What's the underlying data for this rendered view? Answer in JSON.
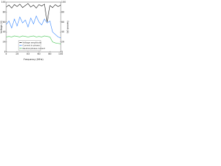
{
  "chart_data": {
    "type": "line",
    "xlabel": "Frequency (MHz)",
    "ylabel": "Voltage (V)",
    "y2label": "Current (A)",
    "x": [
      0,
      5,
      10,
      15,
      20,
      25,
      30,
      35,
      40,
      45,
      50,
      55,
      60,
      65,
      70,
      75,
      80,
      85,
      90,
      95,
      100
    ],
    "series": [
      {
        "name": "Voltage amplitude",
        "color": "#111111",
        "axis": "y",
        "values": [
          90,
          94,
          88,
          95,
          91,
          96,
          89,
          93,
          97,
          90,
          94,
          88,
          95,
          92,
          96,
          60,
          93,
          89,
          95,
          91,
          94
        ]
      },
      {
        "name": "Current in phase",
        "color": "#2a7fff",
        "axis": "y2",
        "values": [
          55,
          62,
          48,
          66,
          52,
          70,
          58,
          64,
          50,
          68,
          56,
          72,
          60,
          54,
          66,
          58,
          62,
          40,
          35,
          30,
          28
        ]
      },
      {
        "name": "Neutral phase current",
        "color": "#3cc24a",
        "axis": "y2",
        "values": [
          30,
          31,
          30,
          32,
          31,
          30,
          32,
          31,
          30,
          31,
          32,
          30,
          31,
          30,
          32,
          31,
          30,
          20,
          18,
          17,
          16
        ]
      }
    ],
    "xlim": [
      0,
      100
    ],
    "xticks": [
      0,
      20,
      40,
      60,
      80,
      100
    ],
    "ylim": [
      0,
      100
    ],
    "yticks": [
      0,
      20,
      40,
      60,
      80,
      100
    ],
    "y2lim": [
      0,
      100
    ],
    "y2ticks": [
      0,
      20,
      40,
      60,
      80,
      100
    ],
    "legend": "lower left"
  }
}
